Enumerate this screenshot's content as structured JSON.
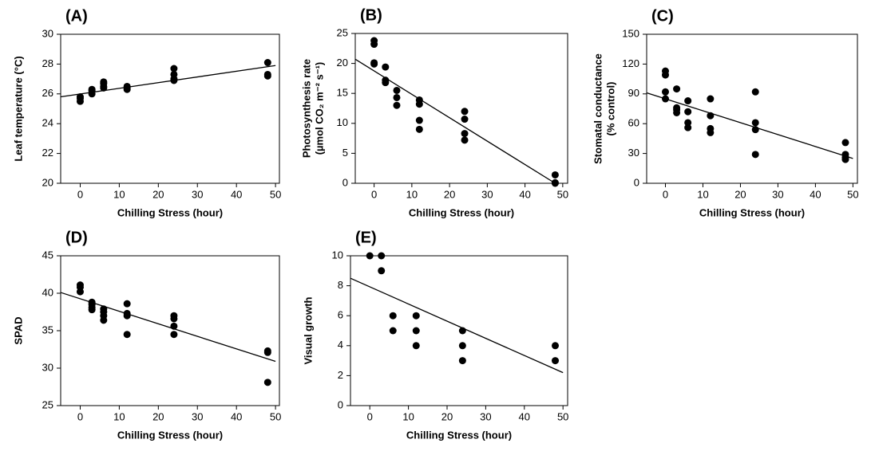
{
  "chart_data": [
    {
      "type": "scatter",
      "title": "(A)",
      "xlabel": "Chilling Stress (hour)",
      "ylabel": [
        "Leaf temperature (°C)"
      ],
      "color": "#000000",
      "x": [
        0,
        0,
        0,
        3,
        3,
        3,
        6,
        6,
        6,
        6,
        12,
        12,
        12,
        24,
        24,
        24,
        24,
        48,
        48,
        48
      ],
      "y": [
        25.5,
        25.7,
        25.8,
        26.0,
        26.2,
        26.3,
        26.4,
        26.5,
        26.7,
        26.8,
        26.3,
        26.4,
        26.5,
        26.9,
        27.0,
        27.3,
        27.7,
        27.2,
        27.3,
        28.1
      ],
      "fit": {
        "x": [
          -5,
          50
        ],
        "y": [
          25.8,
          27.9
        ]
      },
      "xlim": [
        -5,
        51
      ],
      "ylim": [
        20,
        30
      ],
      "xticks": [
        0,
        10,
        20,
        30,
        40,
        50
      ],
      "yticks": [
        20,
        22,
        24,
        26,
        28,
        30
      ]
    },
    {
      "type": "scatter",
      "title": "(B)",
      "xlabel": "Chilling Stress (hour)",
      "ylabel": [
        "Photosynthesis rate",
        "(µmol CO₂ m⁻² s⁻¹)"
      ],
      "color": "#000000",
      "x": [
        0,
        0,
        0,
        0,
        3,
        3,
        3,
        6,
        6,
        6,
        12,
        12,
        12,
        12,
        24,
        24,
        24,
        24,
        48,
        48,
        48
      ],
      "y": [
        23.8,
        23.2,
        20.1,
        19.9,
        19.4,
        17.2,
        16.8,
        15.5,
        14.3,
        13.0,
        13.9,
        13.2,
        10.5,
        9.0,
        12.0,
        10.7,
        8.3,
        7.2,
        1.4,
        0.1,
        0
      ],
      "fit": {
        "x": [
          -5,
          48
        ],
        "y": [
          20.7,
          0
        ]
      },
      "xlim": [
        -5,
        51.3
      ],
      "ylim": [
        0,
        25
      ],
      "xticks": [
        0,
        10,
        20,
        30,
        40,
        50
      ],
      "yticks": [
        0,
        5,
        10,
        15,
        20,
        25
      ]
    },
    {
      "type": "scatter",
      "title": "(C)",
      "xlabel": "Chilling Stress (hour)",
      "ylabel": [
        "Stomatal conductance",
        "(% control)"
      ],
      "color": "#000000",
      "x": [
        0,
        0,
        0,
        0,
        3,
        3,
        3,
        3,
        6,
        6,
        6,
        6,
        12,
        12,
        12,
        12,
        24,
        24,
        24,
        24,
        48,
        48,
        48,
        48
      ],
      "y": [
        113,
        109,
        92,
        85,
        95,
        76,
        74,
        71,
        83,
        72,
        61,
        56,
        85,
        68,
        55,
        51,
        92,
        61,
        54,
        29,
        41,
        29,
        26,
        24
      ],
      "fit": {
        "x": [
          -5,
          50
        ],
        "y": [
          91,
          25
        ]
      },
      "xlim": [
        -5,
        51.2
      ],
      "ylim": [
        0,
        150
      ],
      "xticks": [
        0,
        10,
        20,
        30,
        40,
        50
      ],
      "yticks": [
        0,
        30,
        60,
        90,
        120,
        150
      ]
    },
    {
      "type": "scatter",
      "title": "(D)",
      "xlabel": "Chilling Stress (hour)",
      "ylabel": [
        "SPAD"
      ],
      "color": "#000000",
      "x": [
        0,
        0,
        0,
        3,
        3,
        3,
        3,
        6,
        6,
        6,
        6,
        12,
        12,
        12,
        12,
        24,
        24,
        24,
        24,
        48,
        48,
        48
      ],
      "y": [
        41.1,
        40.8,
        40.2,
        38.8,
        38.5,
        38.1,
        37.8,
        37.9,
        37.5,
        37.0,
        36.4,
        38.6,
        37.3,
        37.0,
        34.5,
        37.0,
        36.6,
        35.6,
        34.5,
        32.3,
        32.1,
        28.1
      ],
      "fit": {
        "x": [
          -5,
          50
        ],
        "y": [
          40.1,
          30.9
        ]
      },
      "xlim": [
        -5,
        51
      ],
      "ylim": [
        25,
        45
      ],
      "xticks": [
        0,
        10,
        20,
        30,
        40,
        50
      ],
      "yticks": [
        25,
        30,
        35,
        40,
        45
      ]
    },
    {
      "type": "scatter",
      "title": "(E)",
      "xlabel": "Chilling Stress (hour)",
      "ylabel": [
        "Visual growth"
      ],
      "color": "#000000",
      "x": [
        0,
        3,
        3,
        6,
        6,
        12,
        12,
        12,
        24,
        24,
        24,
        48,
        48
      ],
      "y": [
        10,
        10,
        9,
        6,
        5,
        6,
        5,
        4,
        5,
        4,
        3,
        4,
        3
      ],
      "fit": {
        "x": [
          -5,
          50
        ],
        "y": [
          8.5,
          2.2
        ]
      },
      "xlim": [
        -5,
        51.2
      ],
      "ylim": [
        0,
        10
      ],
      "xticks": [
        0,
        10,
        20,
        30,
        40,
        50
      ],
      "yticks": [
        0,
        2,
        4,
        6,
        8,
        10
      ]
    }
  ]
}
